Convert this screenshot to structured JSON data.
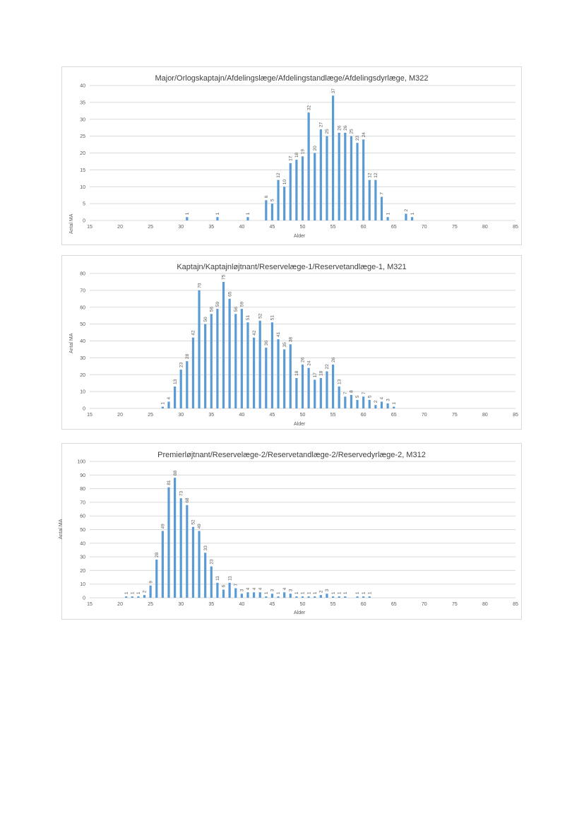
{
  "colors": {
    "bar": "#5b9bd5",
    "grid": "#d9d9d9",
    "axis_text": "#595959",
    "title_text": "#404040"
  },
  "chart_data": [
    {
      "type": "bar",
      "title": "Major/Orlogskaptajn/Afdelingslæge/Afdelingstandlæge/Afdelingsdyrlæge, M322",
      "xlabel": "Alder",
      "ylabel": "Antal MA",
      "xlim": [
        15,
        85
      ],
      "ylim": [
        0,
        40
      ],
      "xticks": [
        15,
        20,
        25,
        30,
        35,
        40,
        45,
        50,
        55,
        60,
        65,
        70,
        75,
        80,
        85
      ],
      "yticks": [
        0,
        5,
        10,
        15,
        20,
        25,
        30,
        35,
        40
      ],
      "grid": true,
      "series": [
        {
          "x": [
            31,
            36,
            41,
            44,
            45,
            46,
            47,
            48,
            49,
            50,
            51,
            52,
            53,
            54,
            55,
            56,
            57,
            58,
            59,
            60,
            61,
            62,
            63,
            64,
            67,
            68
          ],
          "values": [
            1,
            1,
            1,
            6,
            5,
            12,
            10,
            17,
            18,
            19,
            32,
            20,
            27,
            25,
            37,
            26,
            26,
            25,
            23,
            24,
            12,
            12,
            7,
            1,
            2,
            1
          ]
        }
      ]
    },
    {
      "type": "bar",
      "title": "Kaptajn/Kaptajnløjtnant/Reservelæge-1/Reservetandlæge-1, M321",
      "xlabel": "Alder",
      "ylabel": "Antal MA",
      "xlim": [
        15,
        85
      ],
      "ylim": [
        0,
        80
      ],
      "xticks": [
        15,
        20,
        25,
        30,
        35,
        40,
        45,
        50,
        55,
        60,
        65,
        70,
        75,
        80,
        85
      ],
      "yticks": [
        0,
        10,
        20,
        30,
        40,
        50,
        60,
        70,
        80
      ],
      "grid": true,
      "series": [
        {
          "x": [
            27,
            28,
            29,
            30,
            31,
            32,
            33,
            34,
            35,
            36,
            37,
            38,
            39,
            40,
            41,
            42,
            43,
            44,
            45,
            46,
            47,
            48,
            49,
            50,
            51,
            52,
            53,
            54,
            55,
            56,
            57,
            58,
            59,
            60,
            61,
            62,
            63,
            64,
            65
          ],
          "values": [
            1,
            4,
            13,
            23,
            28,
            42,
            70,
            50,
            56,
            59,
            75,
            65,
            56,
            59,
            51,
            42,
            52,
            36,
            51,
            41,
            35,
            38,
            18,
            26,
            24,
            17,
            18,
            22,
            26,
            13,
            7,
            8,
            5,
            7,
            5,
            2,
            4,
            3,
            1
          ]
        }
      ]
    },
    {
      "type": "bar",
      "title": "Premierløjtnant/Reservelæge-2/Reservetandlæge-2/Reservedyrlæge-2, M312",
      "xlabel": "Alder",
      "ylabel": "Antal MA",
      "xlim": [
        15,
        85
      ],
      "ylim": [
        0,
        100
      ],
      "xticks": [
        15,
        20,
        25,
        30,
        35,
        40,
        45,
        50,
        55,
        60,
        65,
        70,
        75,
        80,
        85
      ],
      "yticks": [
        0,
        10,
        20,
        30,
        40,
        50,
        60,
        70,
        80,
        90,
        100
      ],
      "grid": true,
      "series": [
        {
          "x": [
            21,
            22,
            23,
            24,
            25,
            26,
            27,
            28,
            29,
            30,
            31,
            32,
            33,
            34,
            35,
            36,
            37,
            38,
            39,
            40,
            41,
            42,
            43,
            44,
            45,
            46,
            47,
            48,
            49,
            50,
            51,
            52,
            53,
            54,
            55,
            56,
            57,
            59,
            60,
            61
          ],
          "values": [
            1,
            1,
            1,
            2,
            9,
            28,
            49,
            81,
            88,
            73,
            68,
            52,
            49,
            33,
            23,
            11,
            6,
            11,
            7,
            3,
            4,
            4,
            4,
            1,
            3,
            1,
            4,
            3,
            1,
            1,
            1,
            1,
            2,
            3,
            1,
            1,
            1,
            1,
            1,
            1
          ]
        }
      ]
    }
  ]
}
